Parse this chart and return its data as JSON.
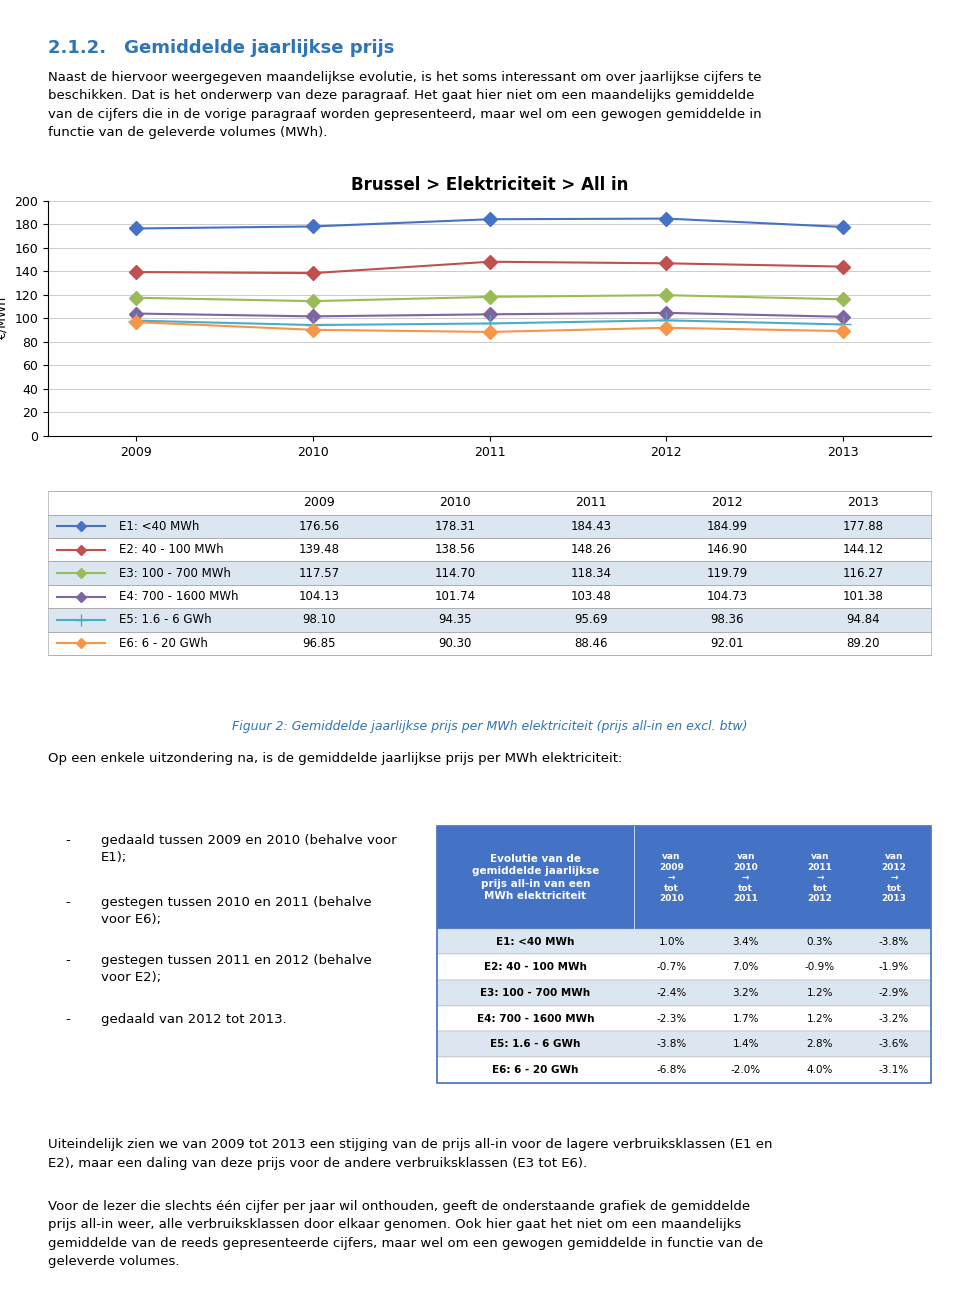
{
  "title_section": "2.1.2. Gemiddelde jaarlijkse prijs",
  "title_section_color": "#2E75B6",
  "chart_title": "Brussel > Elektriciteit > All in",
  "ylabel": "€/MWh",
  "years": [
    2009,
    2010,
    2011,
    2012,
    2013
  ],
  "series": [
    {
      "label": "E1: <40 MWh",
      "color": "#4472C4",
      "marker": "D",
      "values": [
        176.56,
        178.31,
        184.43,
        184.99,
        177.88
      ]
    },
    {
      "label": "E2: 40 - 100 MWh",
      "color": "#C0504D",
      "marker": "D",
      "values": [
        139.48,
        138.56,
        148.26,
        146.9,
        144.12
      ]
    },
    {
      "label": "E3: 100 - 700 MWh",
      "color": "#9BBB59",
      "marker": "D",
      "values": [
        117.57,
        114.7,
        118.34,
        119.79,
        116.27
      ]
    },
    {
      "label": "E4: 700 - 1600 MWh",
      "color": "#8064A2",
      "marker": "D",
      "values": [
        104.13,
        101.74,
        103.48,
        104.73,
        101.38
      ]
    },
    {
      "label": "E5: 1.6 - 6 GWh",
      "color": "#4BACC6",
      "marker": "+",
      "values": [
        98.1,
        94.35,
        95.69,
        98.36,
        94.84
      ]
    },
    {
      "label": "E6: 6 - 20 GWh",
      "color": "#F79646",
      "marker": "D",
      "values": [
        96.85,
        90.3,
        88.46,
        92.01,
        89.2
      ]
    }
  ],
  "ylim": [
    0,
    200
  ],
  "yticks": [
    0,
    20,
    40,
    60,
    80,
    100,
    120,
    140,
    160,
    180,
    200
  ],
  "caption": "Figuur 2: Gemiddelde jaarlijkse prijs per MWh elektriciteit (prijs all-in en excl. btw)",
  "caption_color": "#2E75B6",
  "para1": "Naast de hiervoor weergegeven maandelijkse evolutie, is het soms interessant om over jaarlijkse cijfers te\nbeschikken. Dat is het onderwerp van deze paragraaf. Het gaat hier niet om een maandelijks gemiddelde\nvan de cijfers die in de vorige paragraaf worden gepresenteerd, maar wel om een gewogen gemiddelde in\nfunctie van de geleverde volumes (MWh).",
  "para2": "Op een enkele uitzondering na, is de gemiddelde jaarlijkse prijs per MWh elektriciteit:",
  "bullets": [
    "gedaald tussen 2009 en 2010 (behalve voor\nE1);",
    "gestegen tussen 2010 en 2011 (behalve\nvoor E6);",
    "gestegen tussen 2011 en 2012 (behalve\nvoor E2);",
    "gedaald van 2012 tot 2013."
  ],
  "table_header": "Evolutie van de\ngemiddelde jaarlijkse\nprijs all-in van een\nMWh elektriciteit",
  "table_col_headers": [
    "van\n2009\n→\ntot\n2010",
    "van\n2010\n→\ntot\n2011",
    "van\n2011\n→\ntot\n2012",
    "van\n2012\n→\ntot\n2013"
  ],
  "table_rows": [
    {
      "label": "E1: <40 MWh",
      "values": [
        "1.0%",
        "3.4%",
        "0.3%",
        "-3.8%"
      ]
    },
    {
      "label": "E2: 40 - 100 MWh",
      "values": [
        "-0.7%",
        "7.0%",
        "-0.9%",
        "-1.9%"
      ]
    },
    {
      "label": "E3: 100 - 700 MWh",
      "values": [
        "-2.4%",
        "3.2%",
        "1.2%",
        "-2.9%"
      ]
    },
    {
      "label": "E4: 700 - 1600 MWh",
      "values": [
        "-2.3%",
        "1.7%",
        "1.2%",
        "-3.2%"
      ]
    },
    {
      "label": "E5: 1.6 - 6 GWh",
      "values": [
        "-3.8%",
        "1.4%",
        "2.8%",
        "-3.6%"
      ]
    },
    {
      "label": "E6: 6 - 20 GWh",
      "values": [
        "-6.8%",
        "-2.0%",
        "4.0%",
        "-3.1%"
      ]
    }
  ],
  "table_header_bg": "#4472C4",
  "table_row_bg_odd": "#DCE6F1",
  "table_row_bg_even": "#FFFFFF",
  "para3": "Uiteindelijk zien we van 2009 tot 2013 een stijging van de prijs all-in voor de lagere verbruiksklassen (E1 en\nE2), maar een daling van deze prijs voor de andere verbruiksklassen (E3 tot E6).",
  "para4": "Voor de lezer die slechts één cijfer per jaar wil onthouden, geeft de onderstaande grafiek de gemiddelde\nprijs all-in weer, alle verbruiksklassen door elkaar genomen. Ook hier gaat het niet om een maandelijks\ngemiddelde van de reeds gepresenteerde cijfers, maar wel om een gewogen gemiddelde in functie van de\ngeleverde volumes."
}
